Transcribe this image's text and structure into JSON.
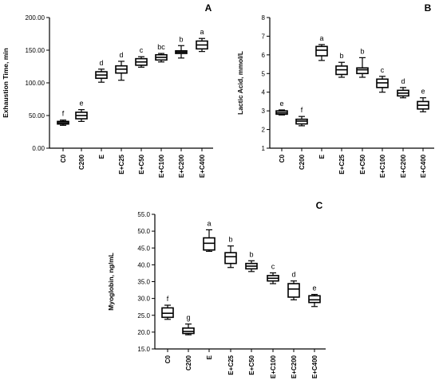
{
  "chart_data": [
    {
      "type": "box",
      "panel_label": "A",
      "ylabel": "Exhaustion Time, min",
      "ylim": [
        0,
        200
      ],
      "yticks": [
        0,
        50,
        100,
        150,
        200
      ],
      "ytick_labels": [
        "0.00",
        "50.00",
        "100.00",
        "150.00",
        "200.00"
      ],
      "categories": [
        "C0",
        "C200",
        "E",
        "E+C25",
        "E+C50",
        "E+C100",
        "E+C200",
        "E+C400"
      ],
      "boxes": [
        {
          "min": 35,
          "q1": 37,
          "median": 39,
          "q3": 41,
          "max": 43
        },
        {
          "min": 41,
          "q1": 45,
          "median": 50,
          "q3": 55,
          "max": 59
        },
        {
          "min": 101,
          "q1": 107,
          "median": 112,
          "q3": 117,
          "max": 121
        },
        {
          "min": 104,
          "q1": 115,
          "median": 121,
          "q3": 126,
          "max": 133
        },
        {
          "min": 124,
          "q1": 127,
          "median": 132,
          "q3": 137,
          "max": 140
        },
        {
          "min": 132,
          "q1": 135,
          "median": 139,
          "q3": 143,
          "max": 145
        },
        {
          "min": 138,
          "q1": 145,
          "median": 147,
          "q3": 149,
          "max": 157
        },
        {
          "min": 148,
          "q1": 152,
          "median": 158,
          "q3": 164,
          "max": 168
        }
      ],
      "significance": [
        "f",
        "e",
        "d",
        "d",
        "c",
        "bc",
        "b",
        "a"
      ],
      "grid": false
    },
    {
      "type": "box",
      "panel_label": "B",
      "ylabel": "Lactic Acid, mmol/L",
      "ylim": [
        1,
        8
      ],
      "yticks": [
        1,
        2,
        3,
        4,
        5,
        6,
        7,
        8
      ],
      "ytick_labels": [
        "1",
        "2",
        "3",
        "4",
        "5",
        "6",
        "7",
        "8"
      ],
      "categories": [
        "C0",
        "C200",
        "E",
        "E+C25",
        "E+C50",
        "E+C100",
        "E+C200",
        "E+C400"
      ],
      "boxes": [
        {
          "min": 2.78,
          "q1": 2.82,
          "median": 2.9,
          "q3": 3.0,
          "max": 3.05
        },
        {
          "min": 2.2,
          "q1": 2.3,
          "median": 2.45,
          "q3": 2.55,
          "max": 2.7
        },
        {
          "min": 5.7,
          "q1": 5.95,
          "median": 6.25,
          "q3": 6.45,
          "max": 6.55
        },
        {
          "min": 4.8,
          "q1": 4.95,
          "median": 5.2,
          "q3": 5.4,
          "max": 5.6
        },
        {
          "min": 4.8,
          "q1": 5.0,
          "median": 5.2,
          "q3": 5.3,
          "max": 5.85
        },
        {
          "min": 4.0,
          "q1": 4.25,
          "median": 4.5,
          "q3": 4.7,
          "max": 4.85
        },
        {
          "min": 3.7,
          "q1": 3.8,
          "median": 3.95,
          "q3": 4.1,
          "max": 4.25
        },
        {
          "min": 2.95,
          "q1": 3.1,
          "median": 3.3,
          "q3": 3.5,
          "max": 3.7
        }
      ],
      "significance": [
        "e",
        "f",
        "a",
        "b",
        "b",
        "c",
        "d",
        "e"
      ],
      "grid": false
    },
    {
      "type": "box",
      "panel_label": "C",
      "ylabel": "Myoglobin, ng/mL",
      "ylim": [
        15,
        55
      ],
      "yticks": [
        15,
        20,
        25,
        30,
        35,
        40,
        45,
        50,
        55
      ],
      "ytick_labels": [
        "15.0",
        "20.0",
        "25.0",
        "30.0",
        "35.0",
        "40.0",
        "45.0",
        "50.0",
        "55.0"
      ],
      "categories": [
        "C0",
        "C200",
        "E",
        "E+C25",
        "E+C50",
        "E+C100",
        "E+C200",
        "E+C400"
      ],
      "boxes": [
        {
          "min": 23.8,
          "q1": 24.4,
          "median": 25.6,
          "q3": 27.2,
          "max": 28.0
        },
        {
          "min": 19.2,
          "q1": 19.6,
          "median": 20.2,
          "q3": 21.2,
          "max": 22.4
        },
        {
          "min": 44.0,
          "q1": 44.4,
          "median": 46.4,
          "q3": 48.0,
          "max": 50.4
        },
        {
          "min": 39.2,
          "q1": 40.4,
          "median": 42.4,
          "q3": 43.6,
          "max": 45.6
        },
        {
          "min": 38.0,
          "q1": 38.8,
          "median": 39.6,
          "q3": 40.4,
          "max": 41.2
        },
        {
          "min": 34.4,
          "q1": 35.2,
          "median": 36.0,
          "q3": 36.8,
          "max": 37.6
        },
        {
          "min": 29.6,
          "q1": 30.4,
          "median": 32.8,
          "q3": 34.4,
          "max": 35.2
        },
        {
          "min": 27.6,
          "q1": 28.8,
          "median": 29.6,
          "q3": 30.8,
          "max": 31.2
        }
      ],
      "significance": [
        "f",
        "g",
        "a",
        "b",
        "b",
        "c",
        "d",
        "e"
      ],
      "grid": false
    }
  ]
}
